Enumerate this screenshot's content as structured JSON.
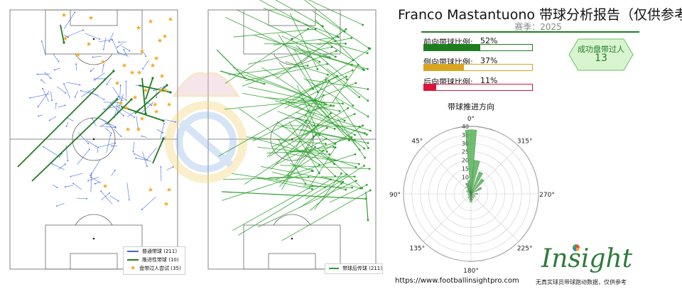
{
  "header": {
    "title": "Franco Mastantuono 带球分析报告（仅供参考）",
    "season": "赛季：2025"
  },
  "ratios": [
    {
      "label": "前向带球比例:",
      "value": "52%",
      "fraction": 0.52,
      "color": "#1e7d1e",
      "border": "#1e7d1e"
    },
    {
      "label": "侧向带球比例:",
      "value": "37%",
      "fraction": 0.37,
      "color": "#daa520",
      "border": "#daa520"
    },
    {
      "label": "后向带球比例:",
      "value": "11%",
      "fraction": 0.11,
      "color": "#dc143c",
      "border": "#dc143c"
    }
  ],
  "badge": {
    "label": "成功盘带过人",
    "value": "13"
  },
  "left_legend": {
    "items": [
      {
        "label": "普通带球 (211)",
        "color": "#4169e1"
      },
      {
        "label": "推进性带球 (10)",
        "color": "#1e7d1e"
      },
      {
        "label": "盘带过人尝试 (35)",
        "color": "#f5a623"
      }
    ]
  },
  "right_legend": {
    "items": [
      {
        "label": "带球后传球 (211)",
        "color": "#2ca02c"
      }
    ]
  },
  "footer": {
    "url": "https://www.footballinsightpro.com",
    "brand": "Insight",
    "tagline": "无真实球员带球跑动数据，仅供参考"
  },
  "chart_data": [
    {
      "type": "scatter",
      "title": "",
      "series": [
        {
          "name": "普通带球 (211)",
          "count": 211
        },
        {
          "name": "推进性带球 (10)",
          "count": 10
        },
        {
          "name": "盘带过人尝试 (35)",
          "count": 35
        }
      ]
    },
    {
      "type": "scatter",
      "title": "",
      "series": [
        {
          "name": "带球后传球 (211)",
          "count": 211
        }
      ]
    },
    {
      "type": "bar",
      "subtype": "polar",
      "title": "带球推进方向",
      "angle_labels": [
        "0°",
        "315°",
        "270°",
        "225°",
        "180°",
        "135°",
        "90°",
        "45°"
      ],
      "radial_ticks": [
        5,
        10,
        15,
        20,
        25,
        30,
        35,
        40
      ],
      "bins": [
        {
          "angle": 0,
          "value": 38
        },
        {
          "angle": 10,
          "value": 8
        },
        {
          "angle": 20,
          "value": 6
        },
        {
          "angle": 30,
          "value": 4
        },
        {
          "angle": 40,
          "value": 3
        },
        {
          "angle": 60,
          "value": 3
        },
        {
          "angle": 90,
          "value": 2
        },
        {
          "angle": 120,
          "value": 2
        },
        {
          "angle": 150,
          "value": 3
        },
        {
          "angle": 170,
          "value": 4
        },
        {
          "angle": 180,
          "value": 5
        },
        {
          "angle": 190,
          "value": 4
        },
        {
          "angle": 210,
          "value": 3
        },
        {
          "angle": 240,
          "value": 3
        },
        {
          "angle": 270,
          "value": 4
        },
        {
          "angle": 300,
          "value": 7
        },
        {
          "angle": 320,
          "value": 11
        },
        {
          "angle": 335,
          "value": 14
        },
        {
          "angle": 350,
          "value": 20
        }
      ]
    }
  ]
}
